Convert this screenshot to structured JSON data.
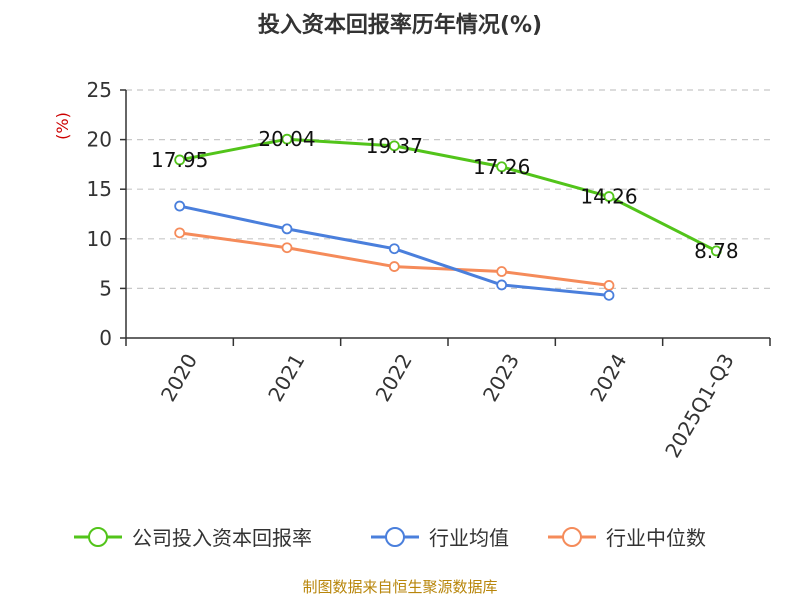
{
  "chart_data": {
    "type": "line",
    "title": "投入资本回报率历年情况(%)",
    "ylabel": "(%)",
    "categories": [
      "2020",
      "2021",
      "2022",
      "2023",
      "2024",
      "2025Q1-Q3"
    ],
    "ylim": [
      0,
      25
    ],
    "yticks": [
      0,
      5,
      10,
      15,
      20,
      25
    ],
    "grid": true,
    "legend_position": "bottom",
    "series": [
      {
        "name": "公司投入资本回报率",
        "color": "#52c41a",
        "values": [
          17.95,
          20.04,
          19.37,
          17.26,
          14.26,
          8.78
        ],
        "labels": [
          "17.95",
          "20.04",
          "19.37",
          "17.26",
          "14.26",
          "8.78"
        ]
      },
      {
        "name": "行业均值",
        "color": "#4a7fdc",
        "values": [
          13.3,
          11.0,
          9.0,
          5.35,
          4.3,
          null
        ]
      },
      {
        "name": "行业中位数",
        "color": "#f58b5a",
        "values": [
          10.6,
          9.1,
          7.2,
          6.7,
          5.3,
          null
        ]
      }
    ]
  },
  "footer": {
    "source": "制图数据来自恒生聚源数据库"
  }
}
